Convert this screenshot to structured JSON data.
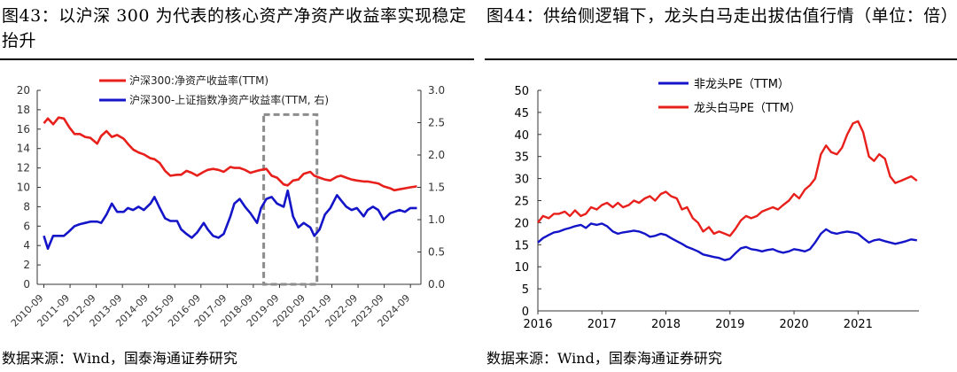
{
  "left_panel": {
    "title": "图43：以沪深 300 为代表的核心资产净资产收益率实现稳定抬升",
    "source": "数据来源：Wind，国泰海通证券研究"
  },
  "right_panel": {
    "title": "图44：供给侧逻辑下，龙头白马走出拔估值行情（单位：倍）",
    "source": "数据来源：Wind，国泰海通证券研究"
  },
  "colors": {
    "red": "#e8201c",
    "blue": "#1414c8",
    "highlight_box": "#8c8c8c",
    "axis": "#333333"
  },
  "chart_data": [
    {
      "type": "line",
      "dual_axis": true,
      "x_categories": [
        "2010-09",
        "2011-09",
        "2012-09",
        "2013-09",
        "2014-09",
        "2015-09",
        "2016-09",
        "2017-09",
        "2018-09",
        "2019-09",
        "2020-09",
        "2021-09",
        "2022-09",
        "2023-09",
        "2024-09"
      ],
      "x": [
        2010.75,
        2010.9,
        2011.1,
        2011.3,
        2011.5,
        2011.7,
        2011.9,
        2012.1,
        2012.3,
        2012.5,
        2012.75,
        2012.9,
        2013.1,
        2013.3,
        2013.5,
        2013.75,
        2013.9,
        2014.1,
        2014.3,
        2014.5,
        2014.75,
        2014.9,
        2015.1,
        2015.3,
        2015.5,
        2015.75,
        2015.9,
        2016.1,
        2016.3,
        2016.5,
        2016.75,
        2016.9,
        2017.1,
        2017.3,
        2017.5,
        2017.75,
        2017.9,
        2018.1,
        2018.3,
        2018.5,
        2018.75,
        2018.9,
        2019.1,
        2019.3,
        2019.5,
        2019.75,
        2019.9,
        2020.1,
        2020.3,
        2020.5,
        2020.75,
        2020.9,
        2021.1,
        2021.3,
        2021.5,
        2021.75,
        2021.9,
        2022.1,
        2022.3,
        2022.5,
        2022.75,
        2022.9,
        2023.1,
        2023.3,
        2023.5,
        2023.75,
        2023.9,
        2024.1,
        2024.3,
        2024.5,
        2024.75
      ],
      "series": [
        {
          "name": "沪深300:净资产收益率(TTM)",
          "axis": "left",
          "color": "#e8201c",
          "values": [
            16.6,
            17.1,
            16.5,
            17.2,
            17.1,
            16.2,
            15.5,
            15.5,
            15.2,
            15.1,
            14.5,
            15.3,
            15.8,
            15.2,
            15.4,
            15.0,
            14.5,
            13.9,
            13.6,
            13.4,
            13.0,
            12.9,
            12.5,
            11.7,
            11.2,
            11.3,
            11.3,
            11.7,
            11.5,
            11.2,
            11.6,
            11.8,
            11.9,
            11.8,
            11.6,
            12.1,
            12.0,
            12.0,
            11.8,
            11.5,
            11.7,
            11.8,
            11.9,
            11.2,
            11.0,
            10.3,
            10.2,
            10.7,
            10.8,
            11.4,
            11.6,
            11.2,
            11.0,
            10.8,
            10.7,
            11.1,
            11.2,
            11.0,
            10.8,
            10.7,
            10.6,
            10.6,
            10.5,
            10.4,
            10.1,
            9.9,
            9.7,
            9.8,
            9.9,
            10.0,
            10.1
          ]
        },
        {
          "name": "沪深300-上证指数净资产收益率(TTM, 右)",
          "axis": "right",
          "color": "#1414c8",
          "values": [
            0.75,
            0.55,
            0.75,
            0.75,
            0.75,
            0.82,
            0.9,
            0.93,
            0.95,
            0.97,
            0.97,
            0.95,
            1.08,
            1.25,
            1.12,
            1.12,
            1.18,
            1.15,
            1.2,
            1.15,
            1.25,
            1.35,
            1.18,
            1.02,
            0.98,
            0.98,
            0.85,
            0.78,
            0.72,
            0.8,
            0.95,
            0.85,
            0.75,
            0.72,
            0.78,
            1.05,
            1.25,
            1.32,
            1.2,
            1.1,
            0.95,
            1.18,
            1.32,
            1.35,
            1.25,
            1.2,
            1.45,
            1.05,
            0.88,
            0.95,
            0.88,
            0.75,
            0.85,
            1.08,
            1.18,
            1.38,
            1.3,
            1.2,
            1.15,
            1.18,
            1.05,
            1.15,
            1.2,
            1.15,
            1.0,
            1.1,
            1.12,
            1.15,
            1.12,
            1.18,
            1.18
          ]
        }
      ],
      "y_left": {
        "min": 0,
        "max": 20,
        "ticks": [
          0,
          2,
          4,
          6,
          8,
          10,
          12,
          14,
          16,
          18,
          20
        ]
      },
      "y_right": {
        "min": 0,
        "max": 3.0,
        "ticks": [
          "0.0",
          "0.5",
          "1.0",
          "1.5",
          "2.0",
          "2.5",
          "3.0"
        ]
      },
      "x_range": [
        2010.5,
        2024.9
      ],
      "highlight_box": {
        "x_from": 2019.0,
        "x_to": 2021.0,
        "y_from": 0,
        "y_to": 17.5
      },
      "legend": "top",
      "grid": false
    },
    {
      "type": "line",
      "x_range": [
        2016.0,
        2021.95
      ],
      "x_ticks": [
        "2016",
        "2017",
        "2018",
        "2019",
        "2020",
        "2021"
      ],
      "x": [
        2016.0,
        2016.08,
        2016.17,
        2016.25,
        2016.33,
        2016.42,
        2016.5,
        2016.58,
        2016.67,
        2016.75,
        2016.83,
        2016.92,
        2017.0,
        2017.08,
        2017.17,
        2017.25,
        2017.33,
        2017.42,
        2017.5,
        2017.58,
        2017.67,
        2017.75,
        2017.83,
        2017.92,
        2018.0,
        2018.08,
        2018.17,
        2018.25,
        2018.33,
        2018.42,
        2018.5,
        2018.58,
        2018.67,
        2018.75,
        2018.83,
        2018.92,
        2019.0,
        2019.08,
        2019.17,
        2019.25,
        2019.33,
        2019.42,
        2019.5,
        2019.58,
        2019.67,
        2019.75,
        2019.83,
        2019.92,
        2020.0,
        2020.08,
        2020.17,
        2020.25,
        2020.33,
        2020.42,
        2020.5,
        2020.58,
        2020.67,
        2020.75,
        2020.83,
        2020.92,
        2021.0,
        2021.08,
        2021.17,
        2021.25,
        2021.33,
        2021.42,
        2021.5,
        2021.58,
        2021.67,
        2021.75,
        2021.83,
        2021.92
      ],
      "series": [
        {
          "name": "非龙头PE（TTM）",
          "color": "#1414c8",
          "values": [
            15.5,
            16.5,
            17.2,
            17.8,
            18.0,
            18.5,
            18.8,
            19.2,
            19.5,
            18.8,
            19.8,
            19.5,
            19.8,
            19.2,
            18.0,
            17.5,
            17.8,
            18.0,
            18.2,
            18.0,
            17.5,
            16.8,
            17.0,
            17.5,
            17.2,
            16.5,
            15.8,
            15.2,
            14.5,
            14.0,
            13.5,
            12.8,
            12.5,
            12.2,
            12.0,
            11.5,
            11.8,
            13.0,
            14.2,
            14.5,
            14.0,
            13.8,
            13.5,
            13.8,
            14.0,
            13.5,
            13.2,
            13.5,
            14.0,
            13.8,
            13.5,
            14.0,
            15.5,
            17.5,
            18.5,
            17.8,
            17.5,
            17.8,
            18.0,
            17.8,
            17.5,
            16.5,
            15.5,
            16.0,
            16.2,
            15.8,
            15.5,
            15.2,
            15.5,
            15.8,
            16.2,
            16.0
          ]
        },
        {
          "name": "龙头白马PE（TTM）",
          "color": "#e8201c",
          "values": [
            20.0,
            21.5,
            21.0,
            22.0,
            22.0,
            22.5,
            21.5,
            22.8,
            21.5,
            22.0,
            23.5,
            23.0,
            24.0,
            24.5,
            23.5,
            24.5,
            23.5,
            24.0,
            25.0,
            24.5,
            25.5,
            26.0,
            25.0,
            26.5,
            27.0,
            26.0,
            25.5,
            23.0,
            23.5,
            21.0,
            20.0,
            18.0,
            19.0,
            17.5,
            18.0,
            17.5,
            17.0,
            18.5,
            20.5,
            21.5,
            21.0,
            21.5,
            22.5,
            23.0,
            23.5,
            23.0,
            24.0,
            25.0,
            26.5,
            25.5,
            27.5,
            28.5,
            30.0,
            35.5,
            37.5,
            36.0,
            35.5,
            37.0,
            40.0,
            42.5,
            43.0,
            40.5,
            35.0,
            34.0,
            35.5,
            34.5,
            30.5,
            29.0,
            29.5,
            30.0,
            30.5,
            29.5
          ]
        }
      ],
      "y_range": [
        0,
        50
      ],
      "y_ticks": [
        0,
        5,
        10,
        15,
        20,
        25,
        30,
        35,
        40,
        45,
        50
      ],
      "legend": "top-left",
      "grid": false
    }
  ]
}
